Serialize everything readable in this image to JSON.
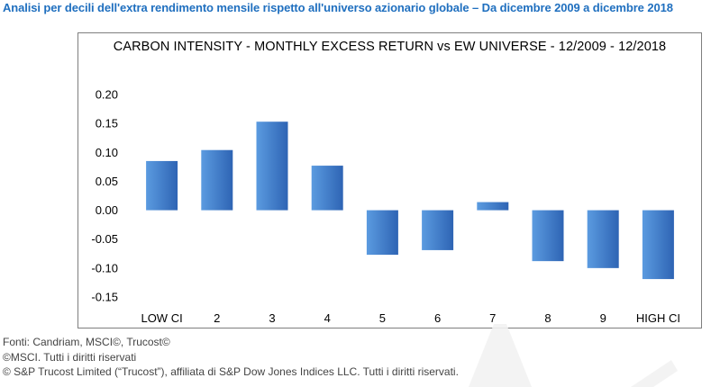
{
  "headline": "Analisi per decili dell'extra rendimento mensile rispetto all'universo azionario globale – Da dicembre 2009 a dicembre 2018",
  "footer": {
    "line1": "Fonti: Candriam, MSCI©, Trucost©",
    "line2": "©MSCI. Tutti i diritti riservati",
    "line3": "© S&P Trucost Limited (“Trucost”), affiliata di S&P Dow Jones Indices LLC. Tutti i diritti riservati."
  },
  "chart_data": {
    "type": "bar",
    "title": "CARBON INTENSITY  - MONTHLY  EXCESS RETURN vs EW UNIVERSE  - 12/2009  - 12/2018",
    "categories": [
      "LOW CI",
      "2",
      "3",
      "4",
      "5",
      "6",
      "7",
      "8",
      "9",
      "HIGH CI"
    ],
    "values": [
      0.085,
      0.104,
      0.153,
      0.077,
      -0.077,
      -0.069,
      0.014,
      -0.088,
      -0.1,
      -0.119
    ],
    "ylim": [
      -0.15,
      0.2
    ],
    "yticks": [
      "0.20",
      "0.15",
      "0.10",
      "0.05",
      "0.00",
      "-0.05",
      "-0.10",
      "-0.15"
    ],
    "ytick_values": [
      0.2,
      0.15,
      0.1,
      0.05,
      0,
      -0.05,
      -0.1,
      -0.15
    ],
    "grid": false,
    "legend": "none",
    "bar_color_light": "#5b9be0",
    "bar_color_dark": "#2e64b4"
  }
}
